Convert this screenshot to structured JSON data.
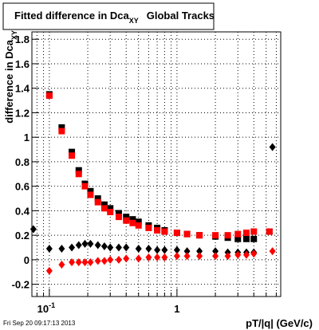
{
  "chart_data": {
    "type": "scatter",
    "title": "Fitted difference in Dca",
    "title_sub": "XY",
    "title_rest": "Global Tracks",
    "ylabel": "difference in Dca",
    "ylabel_sub": "XY",
    "xlabel": "pT/|q| (GeV/c)",
    "footer": "Fri Sep 20 09:17:13 2013",
    "xlog": true,
    "xlim": [
      0.073,
      6.5
    ],
    "ylim": [
      -0.3,
      1.86
    ],
    "xticks": [
      {
        "value": 0.1,
        "label": "10",
        "exponent": "-1"
      },
      1
    ],
    "xminor": [
      0.08,
      0.09,
      0.2,
      0.3,
      0.4,
      0.5,
      0.6,
      0.7,
      0.8,
      0.9,
      2,
      3,
      4,
      5,
      6
    ],
    "yticks": [
      -0.2,
      0,
      0.2,
      0.4,
      0.6,
      0.8,
      1,
      1.2,
      1.4,
      1.6,
      1.8
    ],
    "grid": true,
    "series": [
      {
        "marker": "square",
        "color": "#000000",
        "x": [
          0.1,
          0.125,
          0.15,
          0.17,
          0.19,
          0.21,
          0.24,
          0.27,
          0.3,
          0.35,
          0.4,
          0.45,
          0.5,
          0.6,
          0.7,
          0.8,
          1.0,
          1.2,
          1.5,
          2.0,
          2.5,
          3.0,
          3.5,
          4.0,
          5.3
        ],
        "values": [
          1.35,
          1.08,
          0.88,
          0.73,
          0.62,
          0.56,
          0.5,
          0.45,
          0.42,
          0.38,
          0.35,
          0.33,
          0.31,
          0.28,
          0.26,
          0.24,
          0.22,
          0.21,
          0.2,
          0.19,
          0.18,
          0.17,
          0.17,
          0.17,
          0.23
        ]
      },
      {
        "marker": "square",
        "color": "#ff0000",
        "x": [
          0.1,
          0.125,
          0.15,
          0.17,
          0.19,
          0.21,
          0.24,
          0.27,
          0.3,
          0.35,
          0.4,
          0.45,
          0.5,
          0.6,
          0.7,
          0.8,
          1.0,
          1.2,
          1.5,
          2.0,
          2.5,
          3.0,
          3.5,
          4.0,
          5.3
        ],
        "values": [
          1.34,
          1.05,
          0.85,
          0.7,
          0.6,
          0.53,
          0.47,
          0.42,
          0.39,
          0.35,
          0.32,
          0.3,
          0.28,
          0.26,
          0.24,
          0.23,
          0.22,
          0.21,
          0.2,
          0.2,
          0.2,
          0.21,
          0.22,
          0.23,
          0.23
        ]
      },
      {
        "marker": "diamond",
        "color": "#000000",
        "x": [
          0.075,
          0.1,
          0.125,
          0.15,
          0.17,
          0.19,
          0.21,
          0.24,
          0.27,
          0.3,
          0.35,
          0.4,
          0.5,
          0.6,
          0.7,
          0.8,
          1.0,
          1.2,
          1.5,
          2.0,
          2.5,
          3.0,
          3.5,
          4.0,
          5.6
        ],
        "values": [
          0.25,
          0.09,
          0.09,
          0.1,
          0.12,
          0.13,
          0.13,
          0.12,
          0.11,
          0.1,
          0.1,
          0.1,
          0.09,
          0.09,
          0.08,
          0.08,
          0.08,
          0.07,
          0.07,
          0.07,
          0.06,
          0.06,
          0.06,
          0.06,
          0.92
        ]
      },
      {
        "marker": "diamond",
        "color": "#ff0000",
        "x": [
          0.1,
          0.125,
          0.15,
          0.17,
          0.19,
          0.21,
          0.24,
          0.27,
          0.3,
          0.35,
          0.4,
          0.5,
          0.6,
          0.7,
          0.8,
          1.0,
          1.2,
          1.5,
          2.0,
          2.5,
          3.0,
          3.5,
          4.0,
          5.6
        ],
        "values": [
          -0.09,
          -0.04,
          -0.02,
          -0.02,
          -0.02,
          -0.02,
          -0.01,
          -0.01,
          0.0,
          0.0,
          0.01,
          0.01,
          0.02,
          0.02,
          0.02,
          0.03,
          0.03,
          0.03,
          0.03,
          0.03,
          0.04,
          0.04,
          0.05,
          0.07
        ]
      }
    ]
  }
}
